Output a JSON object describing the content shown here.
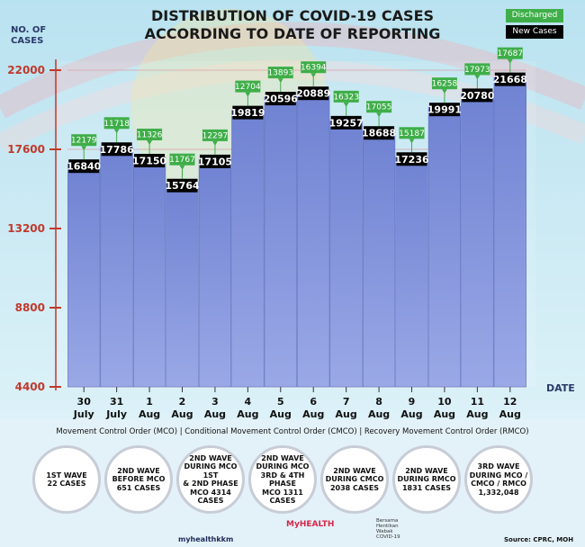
{
  "chart_data": {
    "type": "bar",
    "title": "DISTRIBUTION OF COVID-19 CASES\nACCORDING TO DATE OF REPORTING",
    "y_label": "NO. OF\nCASES",
    "x_label": "DATE",
    "categories": [
      "30\nJuly",
      "31\nJuly",
      "1\nAug",
      "2\nAug",
      "3\nAug",
      "4\nAug",
      "5\nAug",
      "6\nAug",
      "7\nAug",
      "8\nAug",
      "9\nAug",
      "10\nAug",
      "11\nAug",
      "12\nAug"
    ],
    "series": [
      {
        "name": "New Cases",
        "color": "#000000",
        "bar_color": "#6f82d2",
        "values": [
          16840,
          17786,
          17150,
          15764,
          17105,
          19819,
          20596,
          20889,
          19257,
          18688,
          17236,
          19991,
          20780,
          21668
        ]
      },
      {
        "name": "Discharged",
        "color": "#3fae49",
        "values": [
          12179,
          11718,
          11326,
          11767,
          12297,
          12704,
          13893,
          16394,
          16323,
          17055,
          15187,
          16258,
          17973,
          17687
        ]
      }
    ],
    "ylim": [
      4400,
      22000
    ],
    "yticks": [
      4400,
      8800,
      13200,
      17600,
      22000
    ],
    "grid": true
  },
  "footer": {
    "orders": "Movement Control Order (MCO) | Conditional Movement Control Order (CMCO) | Recovery Movement Control Order (RMCO)",
    "waves": [
      "1ST WAVE\n22 CASES",
      "2ND WAVE\nBEFORE MCO\n651 CASES",
      "2ND WAVE\nDURING MCO 1ST\n& 2ND PHASE\nMCO 4314\nCASES",
      "2ND WAVE\nDURING MCO\n3RD & 4TH PHASE\nMCO 1311\nCASES",
      "2ND WAVE\nDURING CMCO\n2038 CASES",
      "2ND WAVE\nDURING RMCO\n1831 CASES",
      "3RD WAVE\nDURING MCO /\nCMCO / RMCO\n1,332,048"
    ],
    "social": "myhealthkkm",
    "brand": "MyHEALTH",
    "campaign": "Bersama\nHentikan\nWabak\nCOVID-19",
    "source": "Source: CPRC, MOH"
  }
}
